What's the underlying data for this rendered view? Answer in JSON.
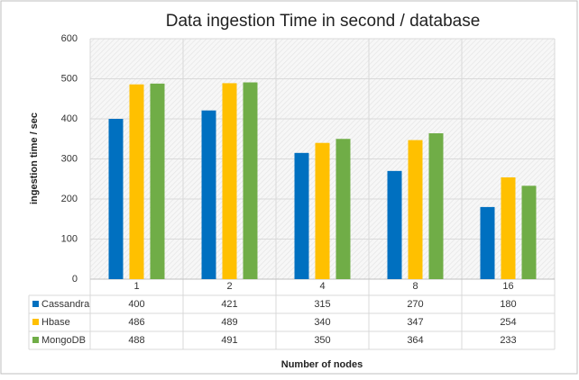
{
  "chart_data": {
    "type": "bar",
    "title": "Data ingestion Time in second / database",
    "y_label": "ingestion time / sec",
    "x_label": "Number of nodes",
    "categories": [
      "1",
      "2",
      "4",
      "8",
      "16"
    ],
    "series": [
      {
        "name": "Cassandra",
        "color": "#0070c0",
        "values": [
          400,
          421,
          315,
          270,
          180
        ]
      },
      {
        "name": "Hbase",
        "color": "#ffc000",
        "values": [
          486,
          489,
          340,
          347,
          254
        ]
      },
      {
        "name": "MongoDB",
        "color": "#70ad47",
        "values": [
          488,
          491,
          350,
          364,
          233
        ]
      }
    ],
    "ylim": [
      0,
      600
    ],
    "yticks": [
      0,
      100,
      200,
      300,
      400,
      500,
      600
    ],
    "grid": true
  }
}
